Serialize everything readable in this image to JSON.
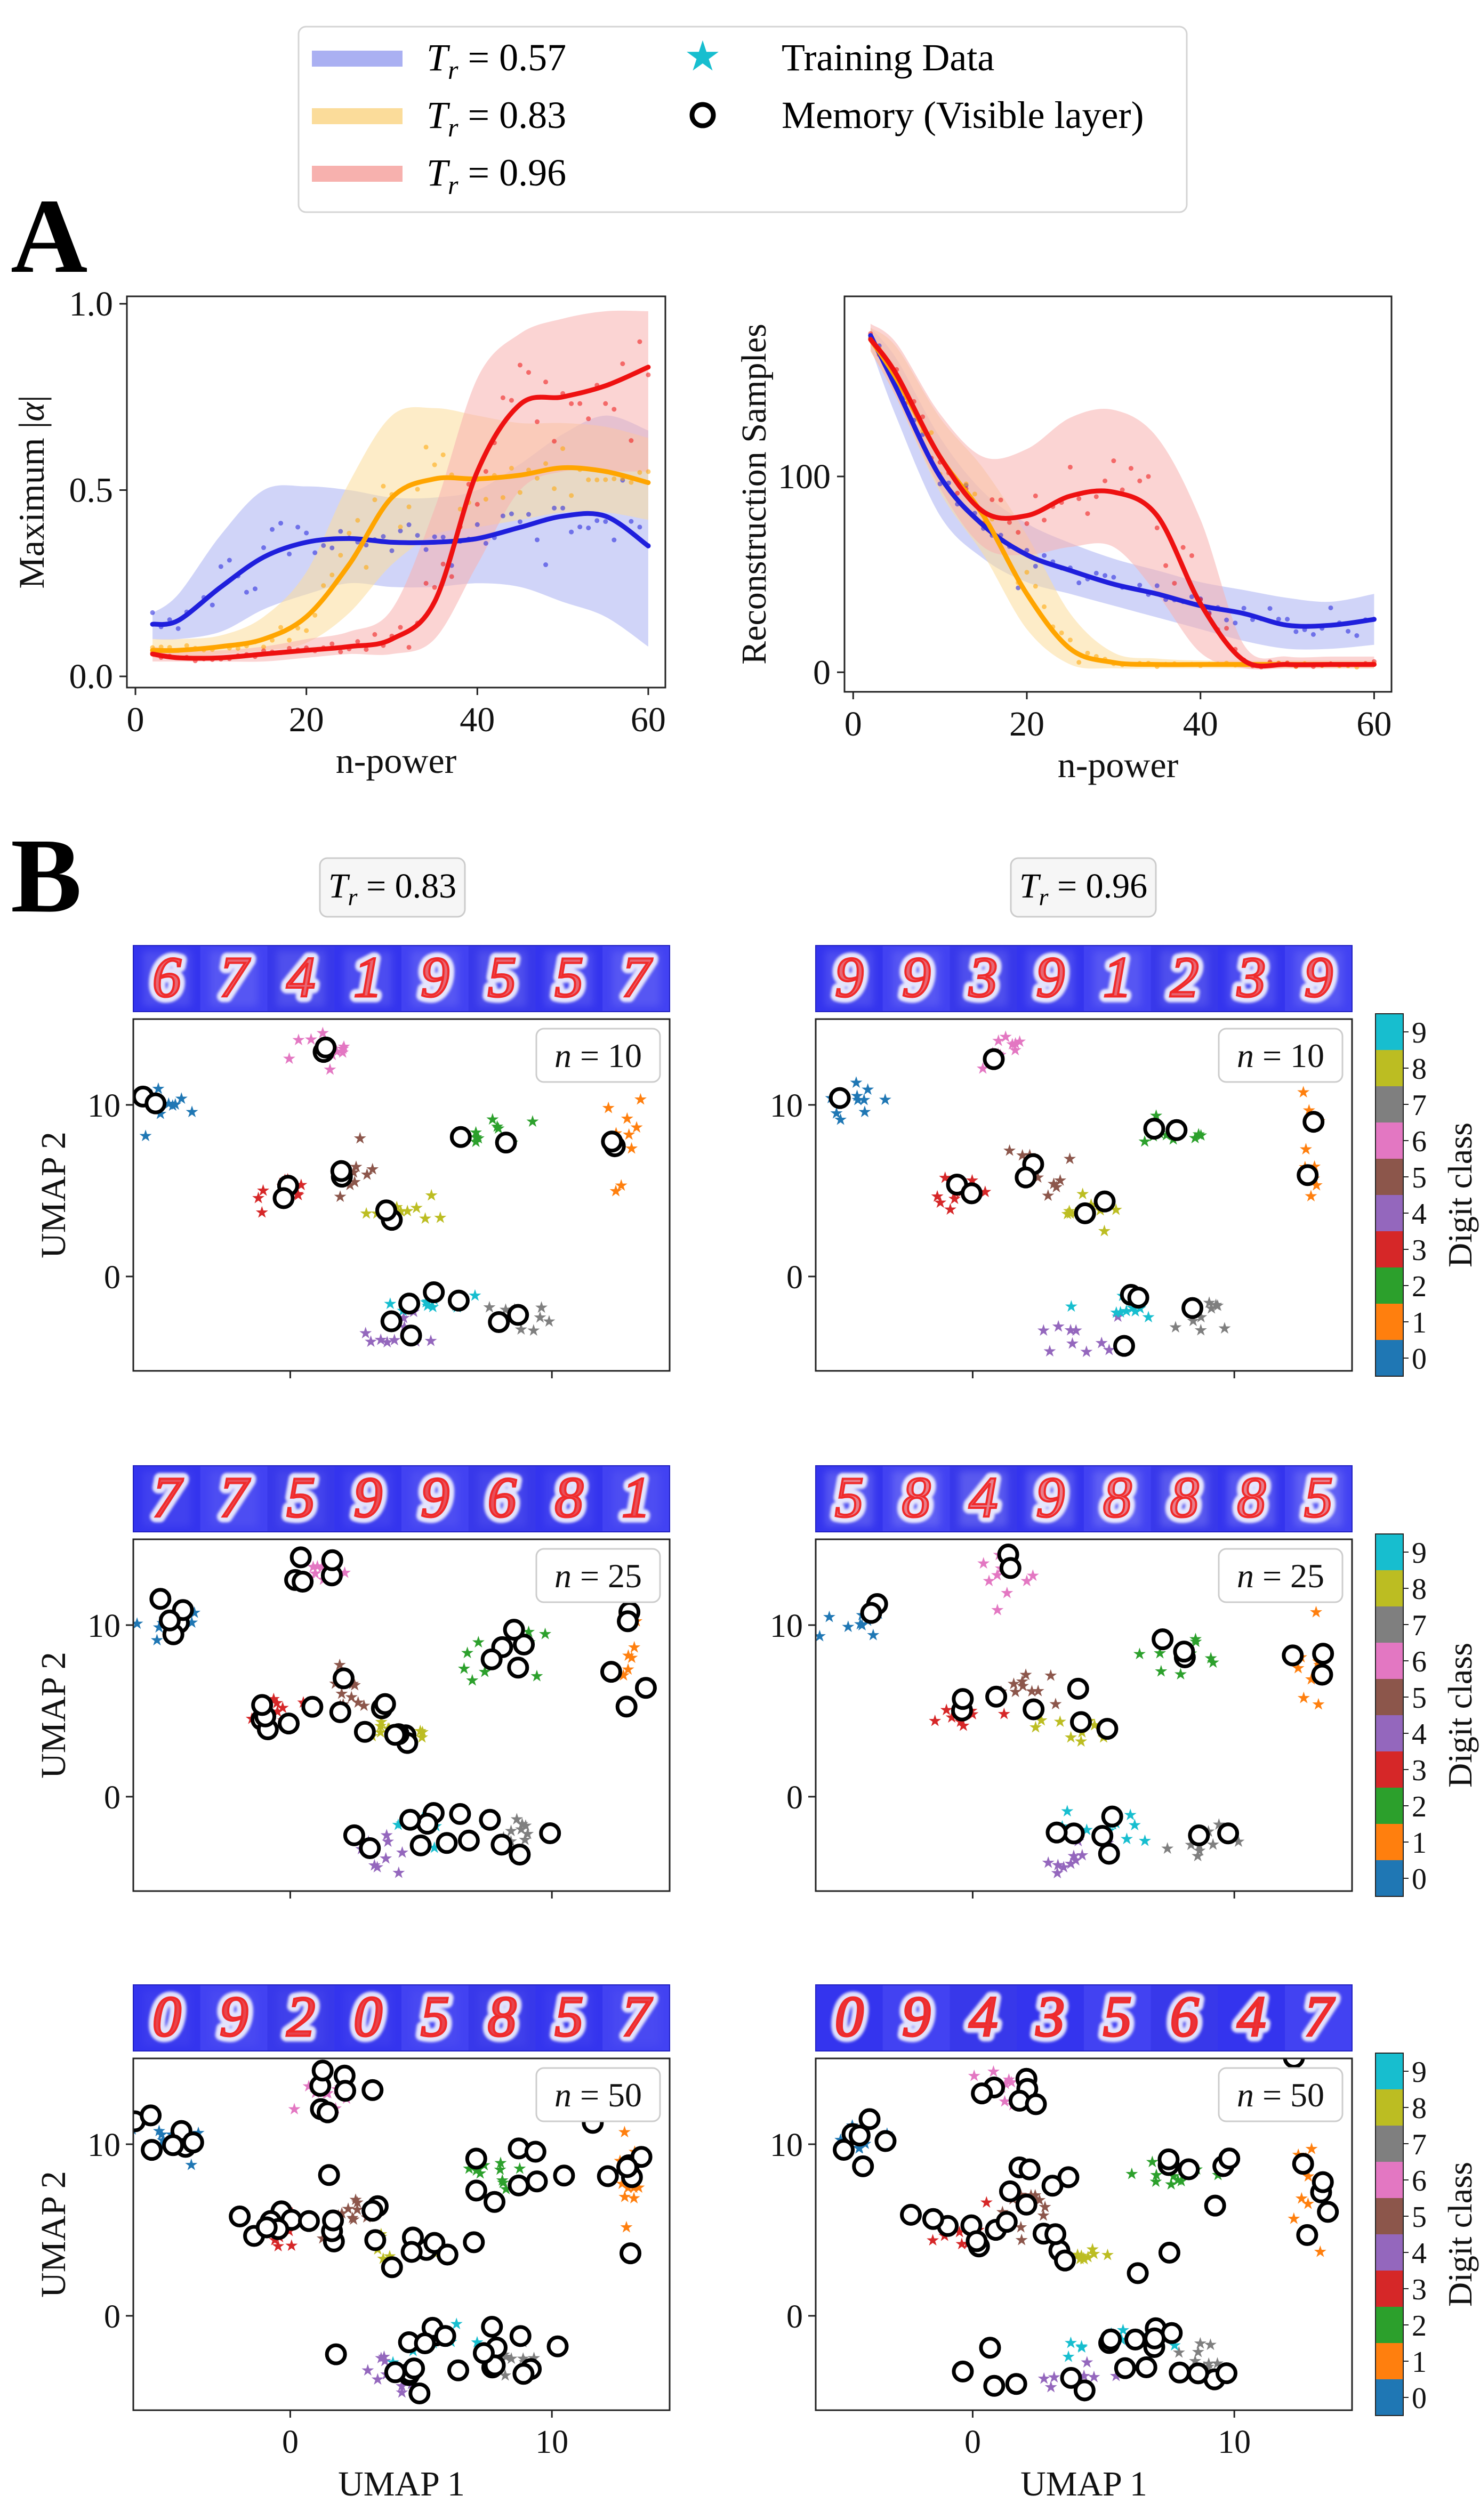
{
  "legend": {
    "entries": [
      {
        "label": "T_r = 0.57",
        "sym": "T",
        "sub": "r",
        "rest": " = 0.57",
        "color": "#aab0f2",
        "kind": "band"
      },
      {
        "label": "T_r = 0.83",
        "sym": "T",
        "sub": "r",
        "rest": " = 0.83",
        "color": "#fbdc9a",
        "kind": "band"
      },
      {
        "label": "T_r = 0.96",
        "sym": "T",
        "sub": "r",
        "rest": " = 0.96",
        "color": "#f7b1ae",
        "kind": "band"
      },
      {
        "label": "Training Data",
        "color": "#17becf",
        "kind": "star"
      },
      {
        "label": "Memory (Visible layer)",
        "color": "#000000",
        "kind": "circle"
      }
    ]
  },
  "panel_labels": {
    "a": "A",
    "b": "B"
  },
  "colors": {
    "t057": "#1f1fdc",
    "t057_band": "#aab0f2",
    "t083": "#ffa500",
    "t083_band": "#fbdc9a",
    "t096": "#ee1111",
    "t096_band": "#f7b1ae",
    "digit_classes": [
      "#1f77b4",
      "#ff7f0e",
      "#2ca02c",
      "#d62728",
      "#9467bd",
      "#8c564b",
      "#e377c2",
      "#7f7f7f",
      "#bcbd22",
      "#17becf"
    ]
  },
  "chart_data": [
    {
      "type": "line",
      "xlabel": "n-power",
      "ylabel": "Maximum |α|",
      "ylabel_parts": {
        "pre": "Maximum |",
        "greek": "α",
        "post": "|"
      },
      "xlim": [
        -1,
        62
      ],
      "ylim": [
        -0.03,
        1.02
      ],
      "xticks": [
        0,
        20,
        40,
        60
      ],
      "yticks": [
        0.0,
        0.5,
        1.0
      ],
      "ytick_labels": [
        "0.0",
        "0.5",
        "1.0"
      ],
      "series": [
        {
          "name": "T_r = 0.57",
          "key": "t057",
          "x": [
            2,
            5,
            10,
            15,
            20,
            25,
            30,
            35,
            40,
            45,
            50,
            55,
            60
          ],
          "y": [
            0.14,
            0.15,
            0.24,
            0.32,
            0.36,
            0.37,
            0.36,
            0.36,
            0.37,
            0.4,
            0.43,
            0.43,
            0.35
          ],
          "lower": [
            0.1,
            0.1,
            0.12,
            0.18,
            0.22,
            0.25,
            0.24,
            0.24,
            0.25,
            0.24,
            0.2,
            0.16,
            0.08
          ],
          "upper": [
            0.17,
            0.22,
            0.38,
            0.5,
            0.51,
            0.5,
            0.48,
            0.48,
            0.5,
            0.57,
            0.65,
            0.7,
            0.66
          ]
        },
        {
          "name": "T_r = 0.83",
          "key": "t083",
          "x": [
            2,
            5,
            10,
            15,
            20,
            25,
            30,
            35,
            40,
            45,
            50,
            55,
            60
          ],
          "y": [
            0.07,
            0.07,
            0.08,
            0.1,
            0.16,
            0.3,
            0.48,
            0.53,
            0.53,
            0.54,
            0.56,
            0.55,
            0.52
          ],
          "lower": [
            0.05,
            0.05,
            0.06,
            0.07,
            0.09,
            0.17,
            0.3,
            0.38,
            0.4,
            0.42,
            0.44,
            0.44,
            0.42
          ],
          "upper": [
            0.1,
            0.1,
            0.11,
            0.16,
            0.28,
            0.52,
            0.7,
            0.72,
            0.7,
            0.68,
            0.68,
            0.67,
            0.64
          ]
        },
        {
          "name": "T_r = 0.96",
          "key": "t096",
          "x": [
            2,
            5,
            10,
            15,
            20,
            25,
            30,
            35,
            40,
            45,
            50,
            55,
            60
          ],
          "y": [
            0.06,
            0.05,
            0.05,
            0.06,
            0.07,
            0.08,
            0.1,
            0.2,
            0.55,
            0.73,
            0.75,
            0.78,
            0.83
          ],
          "lower": [
            0.04,
            0.04,
            0.04,
            0.04,
            0.05,
            0.06,
            0.06,
            0.1,
            0.3,
            0.5,
            0.55,
            0.55,
            0.55
          ],
          "upper": [
            0.08,
            0.07,
            0.07,
            0.08,
            0.1,
            0.12,
            0.18,
            0.45,
            0.8,
            0.92,
            0.96,
            0.98,
            0.98
          ]
        }
      ]
    },
    {
      "type": "line",
      "xlabel": "n-power",
      "ylabel": "Reconstruction Samples",
      "xlim": [
        -1,
        62
      ],
      "ylim": [
        -10,
        192
      ],
      "xticks": [
        0,
        20,
        40,
        60
      ],
      "yticks": [
        0,
        100
      ],
      "ytick_labels": [
        "0",
        "100"
      ],
      "series": [
        {
          "name": "T_r = 0.57",
          "key": "t057",
          "x": [
            2,
            5,
            10,
            15,
            20,
            25,
            30,
            35,
            40,
            45,
            50,
            55,
            60
          ],
          "y": [
            172,
            145,
            100,
            75,
            60,
            52,
            45,
            40,
            34,
            30,
            24,
            24,
            27
          ],
          "lower": [
            166,
            130,
            80,
            58,
            46,
            40,
            34,
            28,
            22,
            16,
            12,
            12,
            14
          ],
          "upper": [
            176,
            160,
            120,
            92,
            76,
            66,
            58,
            52,
            46,
            42,
            38,
            36,
            40
          ]
        },
        {
          "name": "T_r = 0.83",
          "key": "t083",
          "x": [
            2,
            5,
            10,
            15,
            20,
            25,
            30,
            35,
            40,
            45,
            50,
            55,
            60
          ],
          "y": [
            170,
            150,
            110,
            80,
            40,
            12,
            5,
            4,
            4,
            4,
            4,
            4,
            4
          ],
          "lower": [
            164,
            140,
            92,
            60,
            22,
            4,
            2,
            2,
            2,
            2,
            2,
            2,
            2
          ],
          "upper": [
            176,
            166,
            130,
            104,
            70,
            30,
            10,
            7,
            6,
            6,
            6,
            6,
            6
          ]
        },
        {
          "name": "T_r = 0.96",
          "key": "t096",
          "x": [
            2,
            5,
            10,
            15,
            20,
            25,
            30,
            35,
            40,
            45,
            50,
            55,
            60
          ],
          "y": [
            170,
            152,
            110,
            82,
            80,
            90,
            92,
            80,
            35,
            6,
            4,
            4,
            4
          ],
          "lower": [
            164,
            140,
            94,
            64,
            60,
            64,
            64,
            40,
            10,
            2,
            2,
            2,
            2
          ],
          "upper": [
            178,
            168,
            132,
            110,
            114,
            130,
            134,
            120,
            78,
            14,
            8,
            8,
            8
          ]
        }
      ]
    },
    {
      "type": "scatter",
      "column_title": "T_r = 0.83",
      "n_label": "n = 10",
      "n_value": 10,
      "ylabel": "UMAP 2",
      "memories": 21
    },
    {
      "type": "scatter",
      "column_title": "T_r = 0.96",
      "n_label": "n = 10",
      "n_value": 10,
      "memories": 16
    },
    {
      "type": "scatter",
      "n_label": "n = 25",
      "n_value": 25,
      "ylabel": "UMAP 2",
      "memories": 48
    },
    {
      "type": "scatter",
      "n_label": "n = 25",
      "n_value": 25,
      "memories": 24
    },
    {
      "type": "scatter",
      "n_label": "n = 50",
      "n_value": 50,
      "ylabel": "UMAP 2",
      "xlabel": "UMAP 1",
      "memories": 74
    },
    {
      "type": "scatter",
      "n_label": "n = 50",
      "n_value": 50,
      "xlabel": "UMAP 1",
      "memories": 64
    }
  ],
  "umap_axes": {
    "xlim": [
      -6,
      14.5
    ],
    "ylim": [
      -5.5,
      15
    ],
    "xticks": [
      0,
      10
    ],
    "yticks": [
      0,
      10
    ],
    "xlabel": "UMAP 1",
    "ylabel": "UMAP 2"
  },
  "colorbar": {
    "label": "Digit class",
    "ticks": [
      "0",
      "1",
      "2",
      "3",
      "4",
      "5",
      "6",
      "7",
      "8",
      "9"
    ]
  },
  "clusters": [
    {
      "digit": 0,
      "cx": -4.6,
      "cy": 10.3,
      "sx": 0.6,
      "sy": 0.5
    },
    {
      "digit": 1,
      "cx": 12.9,
      "cy": 7.8,
      "sx": 0.3,
      "sy": 2.0
    },
    {
      "digit": 2,
      "cx": 7.8,
      "cy": 8.3,
      "sx": 0.9,
      "sy": 0.6
    },
    {
      "digit": 3,
      "cx": -0.3,
      "cy": 4.9,
      "sx": 0.5,
      "sy": 0.5
    },
    {
      "digit": 4,
      "cx": 4.0,
      "cy": -3.5,
      "sx": 0.8,
      "sy": 0.6
    },
    {
      "digit": 5,
      "cx": 2.3,
      "cy": 6.2,
      "sx": 0.6,
      "sy": 0.8
    },
    {
      "digit": 6,
      "cx": 1.2,
      "cy": 13.2,
      "sx": 0.5,
      "sy": 0.6
    },
    {
      "digit": 7,
      "cx": 8.7,
      "cy": -2.5,
      "sx": 0.5,
      "sy": 0.6
    },
    {
      "digit": 8,
      "cx": 4.3,
      "cy": 3.8,
      "sx": 0.8,
      "sy": 0.4
    },
    {
      "digit": 9,
      "cx": 5.5,
      "cy": -1.6,
      "sx": 1.0,
      "sy": 0.5
    }
  ],
  "digit_strips": [
    {
      "digits": [
        "6",
        "7",
        "4",
        "1",
        "9",
        "5",
        "5",
        "7"
      ],
      "clarity": 0.55
    },
    {
      "digits": [
        "9",
        "9",
        "3",
        "9",
        "1",
        "2",
        "3",
        "9"
      ],
      "clarity": 0.55
    },
    {
      "digits": [
        "7",
        "7",
        "5",
        "9",
        "9",
        "6",
        "8",
        "1"
      ],
      "clarity": 0.75
    },
    {
      "digits": [
        "5",
        "8",
        "4",
        "9",
        "8",
        "8",
        "8",
        "5"
      ],
      "clarity": 0.35
    },
    {
      "digits": [
        "0",
        "9",
        "2",
        "0",
        "5",
        "8",
        "5",
        "7"
      ],
      "clarity": 0.85
    },
    {
      "digits": [
        "0",
        "9",
        "4",
        "3",
        "5",
        "6",
        "4",
        "7"
      ],
      "clarity": 1.0
    }
  ]
}
